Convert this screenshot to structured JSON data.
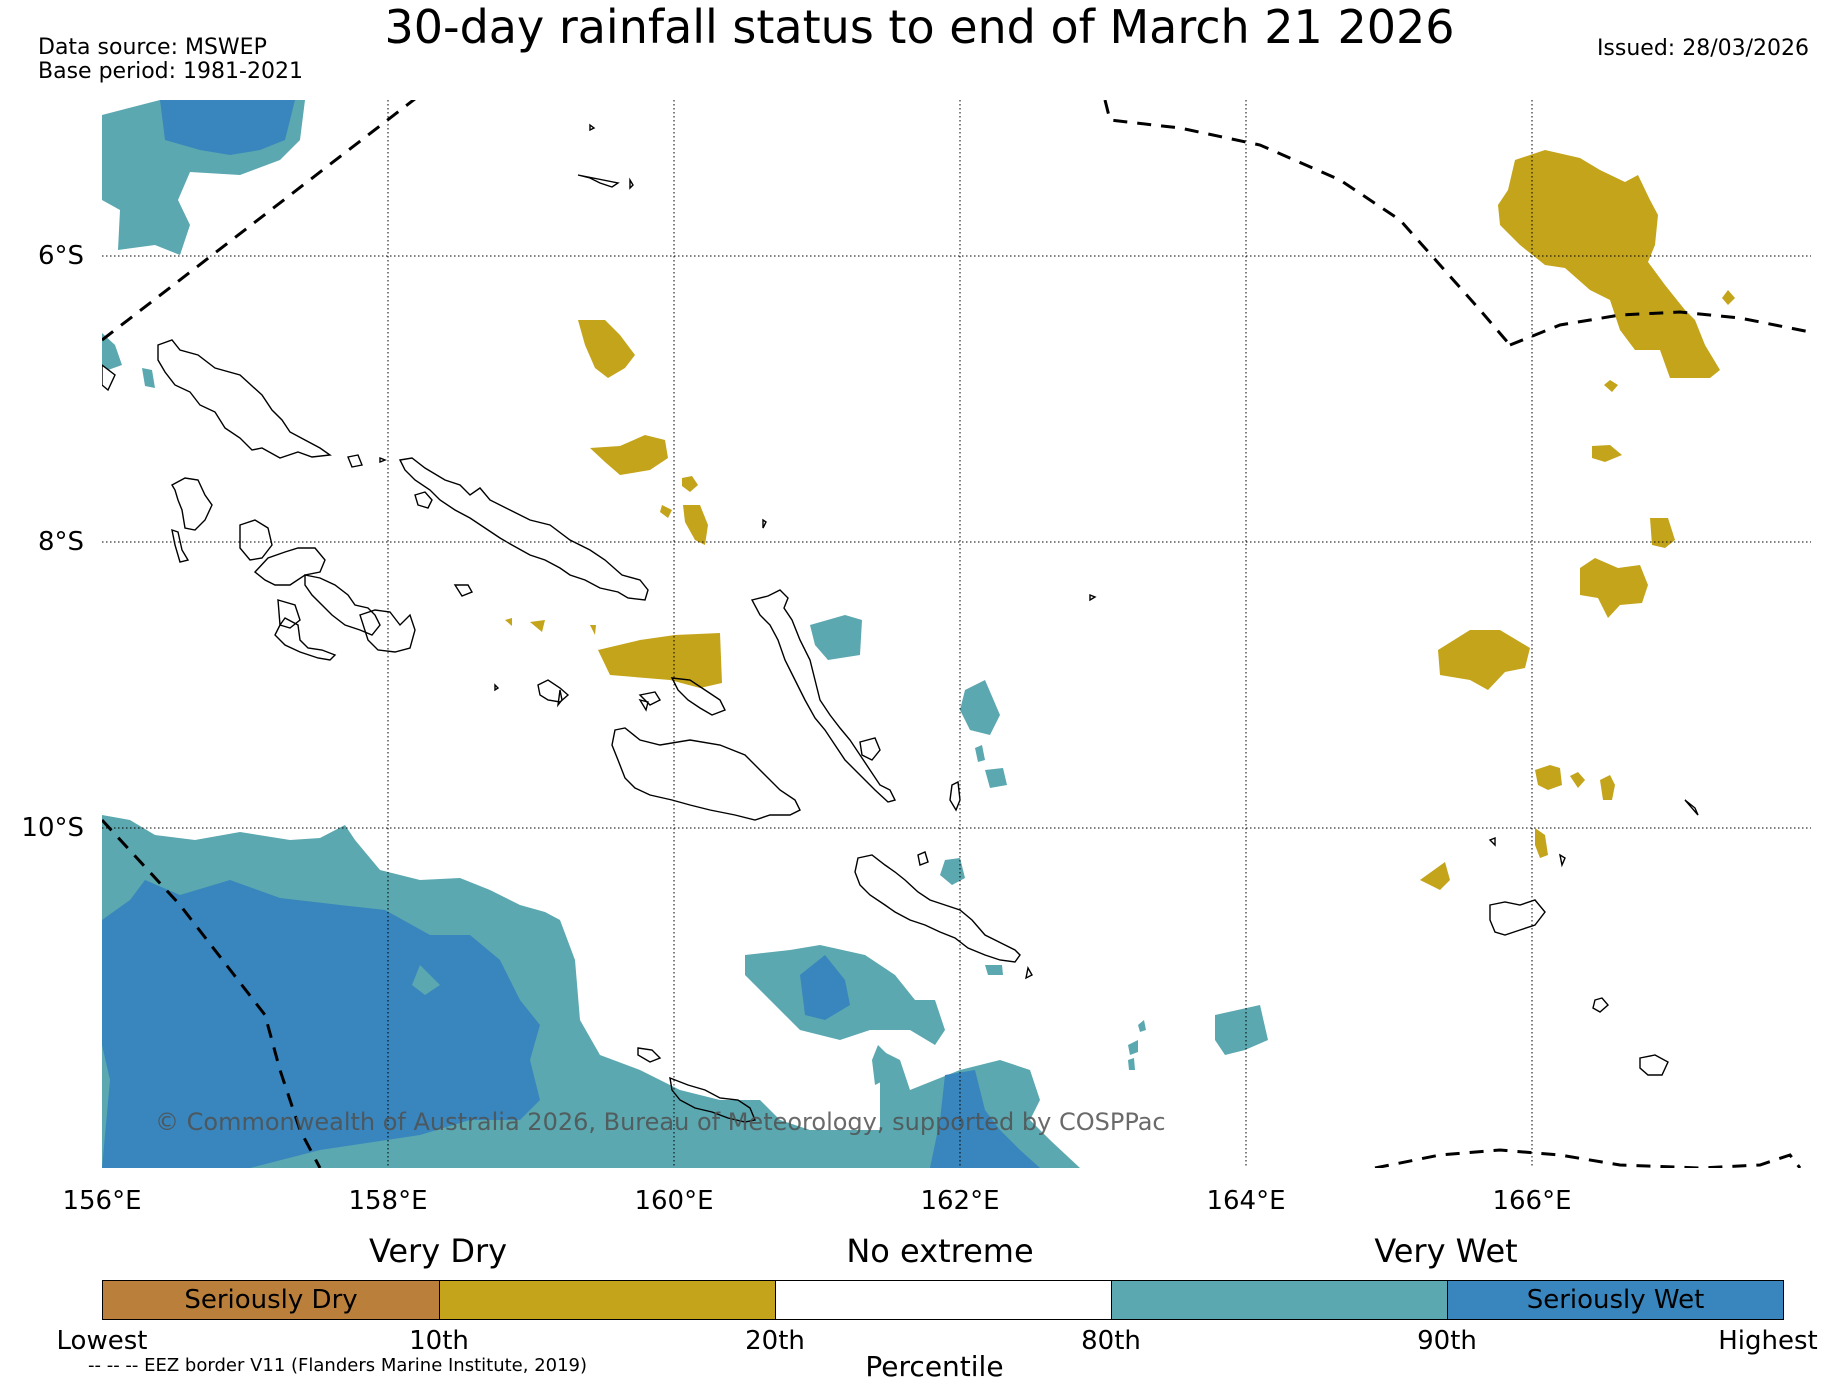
{
  "title": "30-day rainfall status to end of March 21 2026",
  "data_source": "Data source: MSWEP",
  "base_period": "Base period: 1981-2021",
  "issued": "Issued: 28/03/2026",
  "copyright": "© Commonwealth of Australia 2026, Bureau of Meteorology, supported by COSPPac",
  "lat_labels": [
    "6°S",
    "8°S",
    "10°S"
  ],
  "lon_labels": [
    "156°E",
    "158°E",
    "160°E",
    "162°E",
    "164°E",
    "166°E"
  ],
  "legend": {
    "very_dry": "Very Dry",
    "no_extreme": "No extreme",
    "very_wet": "Very Wet",
    "seriously_dry": "Seriously Dry",
    "seriously_wet": "Seriously Wet",
    "percentiles": [
      "Lowest",
      "10th",
      "20th",
      "80th",
      "90th",
      "Highest"
    ],
    "axis_label": "Percentile",
    "eez_note": "-- -- -- EEZ border V11 (Flanders Marine Institute, 2019)"
  },
  "colors": {
    "seriously_dry": "#b97f3b",
    "very_dry": "#c4a41a",
    "no_extreme": "#ffffff",
    "very_wet": "#5ba8b0",
    "seriously_wet": "#3886bd"
  }
}
